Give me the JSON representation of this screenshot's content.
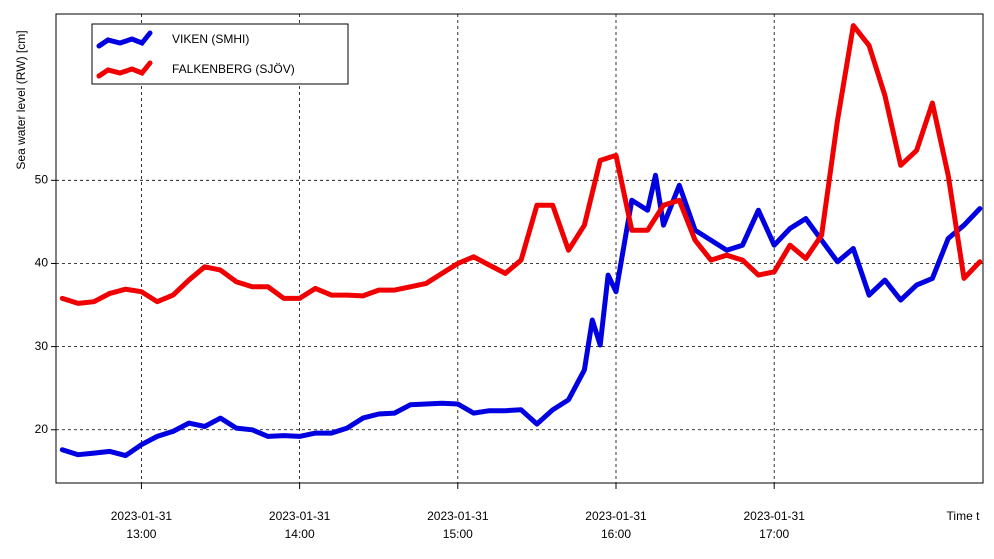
{
  "chart_data": {
    "type": "line",
    "y_label": "Sea water level (RW) [cm]",
    "x_label": "Time t",
    "xlim": [
      12.46,
      18.32
    ],
    "ylim": [
      13.6,
      70
    ],
    "xticks": [
      {
        "value": 13,
        "label": "2023-01-31 13:00"
      },
      {
        "value": 14,
        "label": "2023-01-31 14:00"
      },
      {
        "value": 15,
        "label": "2023-01-31 15:00"
      },
      {
        "value": 16,
        "label": "2023-01-31 16:00"
      },
      {
        "value": 17,
        "label": "2023-01-31 17:00"
      }
    ],
    "yticks": [
      20,
      30,
      40,
      50
    ],
    "grid": true,
    "legend": "top-left",
    "series": [
      {
        "name": "VIKEN (SMHI)",
        "color": "#0000e0",
        "x": [
          12.5,
          12.6,
          12.7,
          12.8,
          12.9,
          13.0,
          13.1,
          13.2,
          13.3,
          13.4,
          13.5,
          13.6,
          13.7,
          13.8,
          13.9,
          14.0,
          14.1,
          14.2,
          14.3,
          14.4,
          14.5,
          14.6,
          14.7,
          14.8,
          14.9,
          15.0,
          15.1,
          15.2,
          15.3,
          15.4,
          15.5,
          15.6,
          15.7,
          15.8,
          15.85,
          15.9,
          15.95,
          16.0,
          16.1,
          16.2,
          16.25,
          16.3,
          16.4,
          16.5,
          16.6,
          16.7,
          16.8,
          16.9,
          17.0,
          17.1,
          17.2,
          17.3,
          17.4,
          17.5,
          17.6,
          17.7,
          17.8,
          17.9,
          18.0,
          18.1,
          18.2,
          18.3
        ],
        "values": [
          17.6,
          17.0,
          17.2,
          17.4,
          16.9,
          18.2,
          19.2,
          19.8,
          20.8,
          20.4,
          21.4,
          20.2,
          20,
          19.2,
          19.3,
          19.2,
          19.6,
          19.6,
          20.2,
          21.4,
          21.9,
          22,
          23,
          23.1,
          23.2,
          23.1,
          22,
          22.3,
          22.3,
          22.4,
          20.7,
          22.4,
          23.6,
          27.2,
          33.2,
          30.2,
          38.6,
          36.6,
          47.6,
          46.4,
          50.6,
          44.6,
          49.4,
          44,
          42.8,
          41.6,
          42.2,
          46.4,
          42.2,
          44.2,
          45.4,
          42.8,
          40.2,
          41.8,
          36.2,
          38,
          35.6,
          37.4,
          38.2,
          43,
          44.6,
          46.6
        ]
      },
      {
        "name": "FALKENBERG (SJÖV)",
        "color": "#f00000",
        "x": [
          12.5,
          12.6,
          12.7,
          12.8,
          12.9,
          13.0,
          13.1,
          13.2,
          13.3,
          13.4,
          13.5,
          13.6,
          13.7,
          13.8,
          13.9,
          14.0,
          14.1,
          14.2,
          14.3,
          14.4,
          14.5,
          14.6,
          14.7,
          14.8,
          14.9,
          15.0,
          15.1,
          15.2,
          15.3,
          15.4,
          15.5,
          15.6,
          15.7,
          15.8,
          15.9,
          16.0,
          16.1,
          16.2,
          16.3,
          16.4,
          16.5,
          16.6,
          16.7,
          16.8,
          16.9,
          17.0,
          17.1,
          17.2,
          17.3,
          17.4,
          17.5,
          17.6,
          17.7,
          17.8,
          17.9,
          18.0,
          18.1,
          18.2,
          18.3
        ],
        "values": [
          35.8,
          35.2,
          35.4,
          36.4,
          36.9,
          36.6,
          35.4,
          36.2,
          38,
          39.6,
          39.2,
          37.8,
          37.2,
          37.2,
          35.8,
          35.8,
          37,
          36.2,
          36.2,
          36.1,
          36.8,
          36.8,
          37.2,
          37.6,
          38.8,
          40,
          40.8,
          39.8,
          38.8,
          40.4,
          47,
          47,
          41.6,
          44.6,
          52.4,
          53,
          44,
          44,
          47,
          47.6,
          42.8,
          40.4,
          41,
          40.4,
          38.6,
          39,
          42.2,
          40.6,
          43.4,
          57.2,
          68.6,
          66.2,
          60.2,
          51.8,
          53.6,
          59.3,
          50.6,
          38.2,
          40.2
        ]
      }
    ]
  }
}
